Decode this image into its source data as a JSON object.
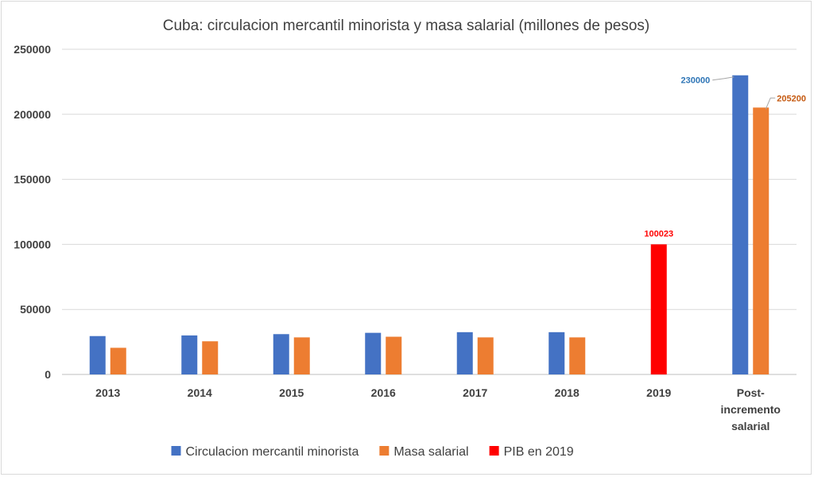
{
  "chart_data": {
    "type": "bar",
    "title": "Cuba: circulacion mercantil minorista y masa salarial (millones de pesos)",
    "xlabel": "",
    "ylabel": "",
    "ylim": [
      0,
      250000
    ],
    "yticks": [
      "0",
      "50000",
      "100000",
      "150000",
      "200000",
      "250000"
    ],
    "categories": [
      "2013",
      "2014",
      "2015",
      "2016",
      "2017",
      "2018",
      "2019",
      "Post-incremento salarial"
    ],
    "category_lines": [
      [
        "2013"
      ],
      [
        "2014"
      ],
      [
        "2015"
      ],
      [
        "2016"
      ],
      [
        "2017"
      ],
      [
        "2018"
      ],
      [
        "2019"
      ],
      [
        "Post-",
        "incremento",
        "salarial"
      ]
    ],
    "grid": true,
    "legend_position": "bottom",
    "series": [
      {
        "name": "Circulacion mercantil minorista",
        "color": "#4472C4",
        "values": [
          29500,
          30000,
          31000,
          32000,
          32500,
          32500,
          null,
          230000
        ]
      },
      {
        "name": "Masa salarial",
        "color": "#ED7D31",
        "values": [
          20500,
          25500,
          28500,
          29000,
          28500,
          28500,
          null,
          205200
        ]
      },
      {
        "name": "PIB en 2019",
        "color": "#FF0000",
        "values": [
          null,
          null,
          null,
          null,
          null,
          null,
          100023,
          null
        ]
      }
    ],
    "data_labels": [
      {
        "series": 0,
        "category": 7,
        "text": "230000",
        "color": "#2E75B6"
      },
      {
        "series": 1,
        "category": 7,
        "text": "205200",
        "color": "#C55A11"
      },
      {
        "series": 2,
        "category": 6,
        "text": "100023",
        "color": "#FF0000"
      }
    ]
  }
}
